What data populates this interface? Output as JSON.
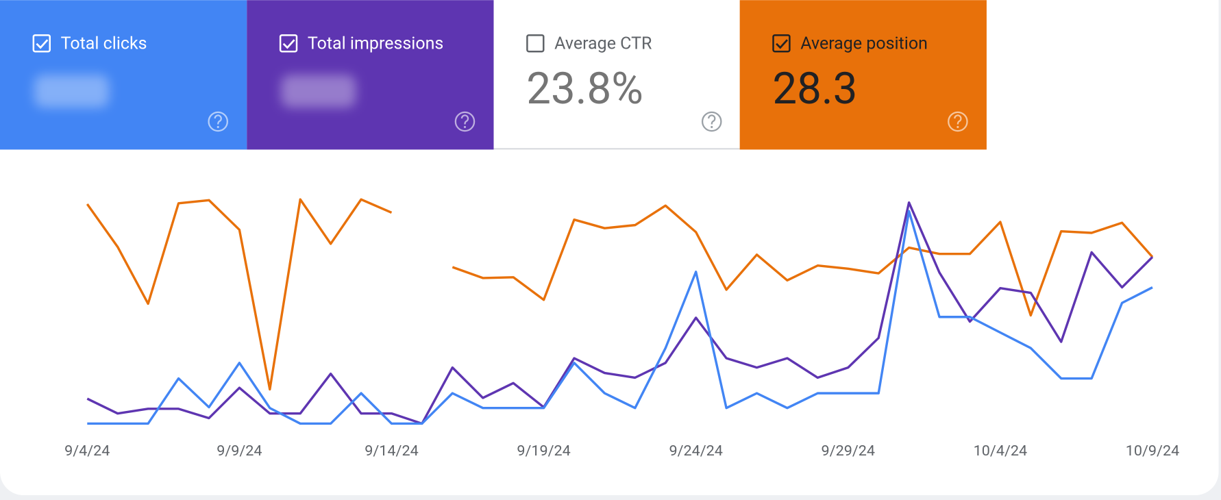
{
  "chart_data": {
    "type": "line",
    "categories": [
      "9/4/24",
      null,
      null,
      null,
      null,
      "9/9/24",
      null,
      null,
      null,
      null,
      "9/14/24",
      null,
      null,
      null,
      null,
      "9/19/24",
      null,
      null,
      null,
      null,
      "9/24/24",
      null,
      null,
      null,
      null,
      "9/29/24",
      null,
      null,
      null,
      null,
      "10/4/24",
      null,
      null,
      null,
      null,
      "10/9/24"
    ],
    "series": [
      {
        "name": "Average position",
        "color": "#e8710a",
        "checked": true,
        "summary": "28.3",
        "values": [
          283,
          228,
          155,
          284,
          288,
          250,
          45,
          289,
          232,
          289,
          272,
          null,
          202,
          188,
          189,
          160,
          263,
          252,
          256,
          281,
          247,
          173,
          218,
          185,
          204,
          200,
          194,
          227,
          219,
          219,
          260,
          140,
          248,
          246,
          259,
          215
        ]
      },
      {
        "name": "Total impressions",
        "color": "#5e35b1",
        "checked": true,
        "values": [
          33,
          14,
          20,
          20,
          8,
          47,
          14,
          14,
          65,
          14,
          14,
          1,
          73,
          34,
          53,
          22,
          85,
          66,
          60,
          79,
          137,
          85,
          73,
          85,
          60,
          73,
          111,
          285,
          195,
          132,
          175,
          169,
          106,
          221,
          176,
          215
        ]
      },
      {
        "name": "Total clicks",
        "color": "#4285f4",
        "checked": true,
        "values": [
          1,
          1,
          1,
          59,
          22,
          79,
          21,
          1,
          1,
          40,
          1,
          1,
          40,
          21,
          21,
          21,
          79,
          40,
          21,
          98,
          196,
          21,
          40,
          21,
          40,
          40,
          40,
          274,
          138,
          138,
          118,
          98,
          59,
          59,
          156,
          176
        ]
      }
    ]
  },
  "ctr_card": {
    "label": "Average CTR",
    "value": "23.8%",
    "checked": false
  }
}
